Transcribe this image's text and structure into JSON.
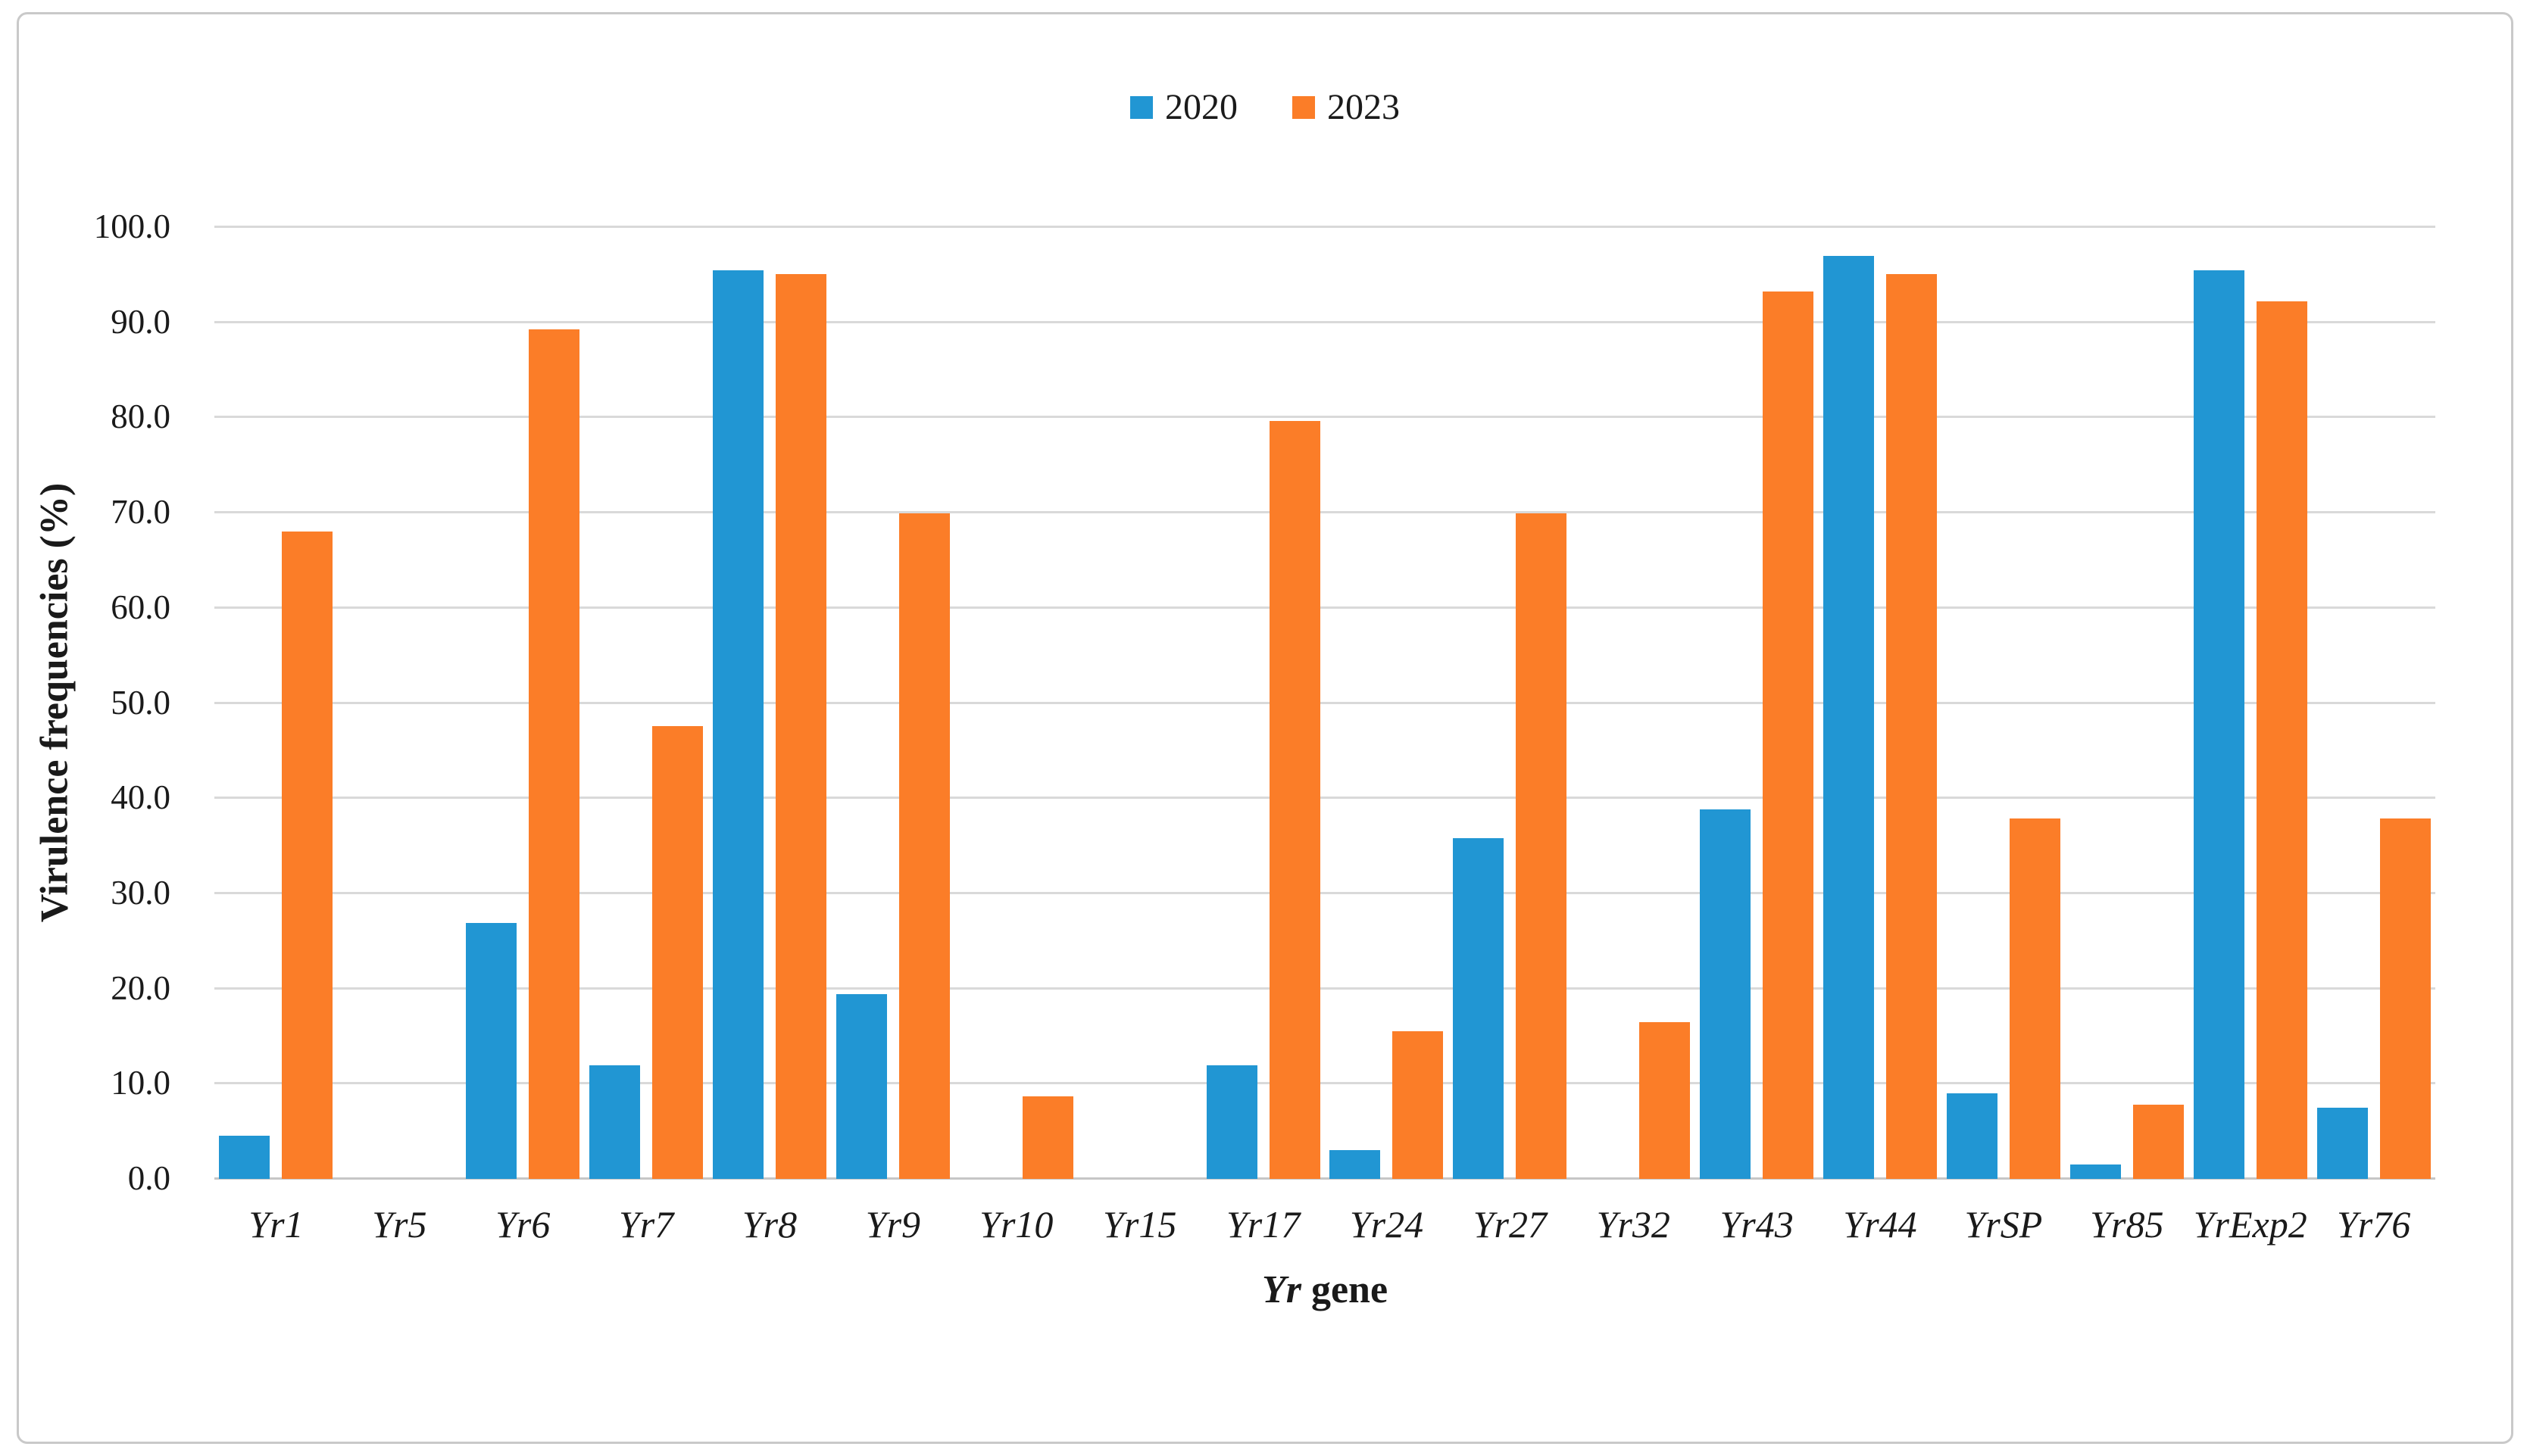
{
  "figure": {
    "legend": [
      {
        "label": "2020",
        "color": "#2196D3"
      },
      {
        "label": "2023",
        "color": "#FB7D28"
      }
    ],
    "xlabel_parts": {
      "italic": "Yr",
      "regular": " gene"
    }
  },
  "chart_data": {
    "type": "bar",
    "title": "",
    "categories": [
      "Yr1",
      "Yr5",
      "Yr6",
      "Yr7",
      "Yr8",
      "Yr9",
      "Yr10",
      "Yr15",
      "Yr17",
      "Yr24",
      "Yr27",
      "Yr32",
      "Yr43",
      "Yr44",
      "YrSP",
      "Yr85",
      "YrExp2",
      "Yr76"
    ],
    "series": [
      {
        "name": "2020",
        "color": "#2196D3",
        "values": [
          4.5,
          0,
          26.9,
          11.9,
          95.5,
          19.4,
          0,
          0,
          11.9,
          3.0,
          35.8,
          0,
          38.8,
          97.0,
          9.0,
          1.5,
          95.5,
          7.5
        ]
      },
      {
        "name": "2023",
        "color": "#FB7D28",
        "values": [
          68.0,
          0,
          89.3,
          47.6,
          95.1,
          69.9,
          8.7,
          0,
          79.6,
          15.5,
          69.9,
          16.5,
          93.2,
          95.1,
          37.9,
          7.8,
          92.2,
          37.9
        ]
      }
    ],
    "xlabel": "Yr gene",
    "ylabel": "Virulence frequencies (%)",
    "ylim": [
      0,
      100
    ],
    "ytick_step": 10,
    "ytick_labels": [
      "0.0",
      "10.0",
      "20.0",
      "30.0",
      "40.0",
      "50.0",
      "60.0",
      "70.0",
      "80.0",
      "90.0",
      "100.0"
    ],
    "grid": true,
    "legend_position": "top-center",
    "gridline_color": "#d9d9d9"
  }
}
